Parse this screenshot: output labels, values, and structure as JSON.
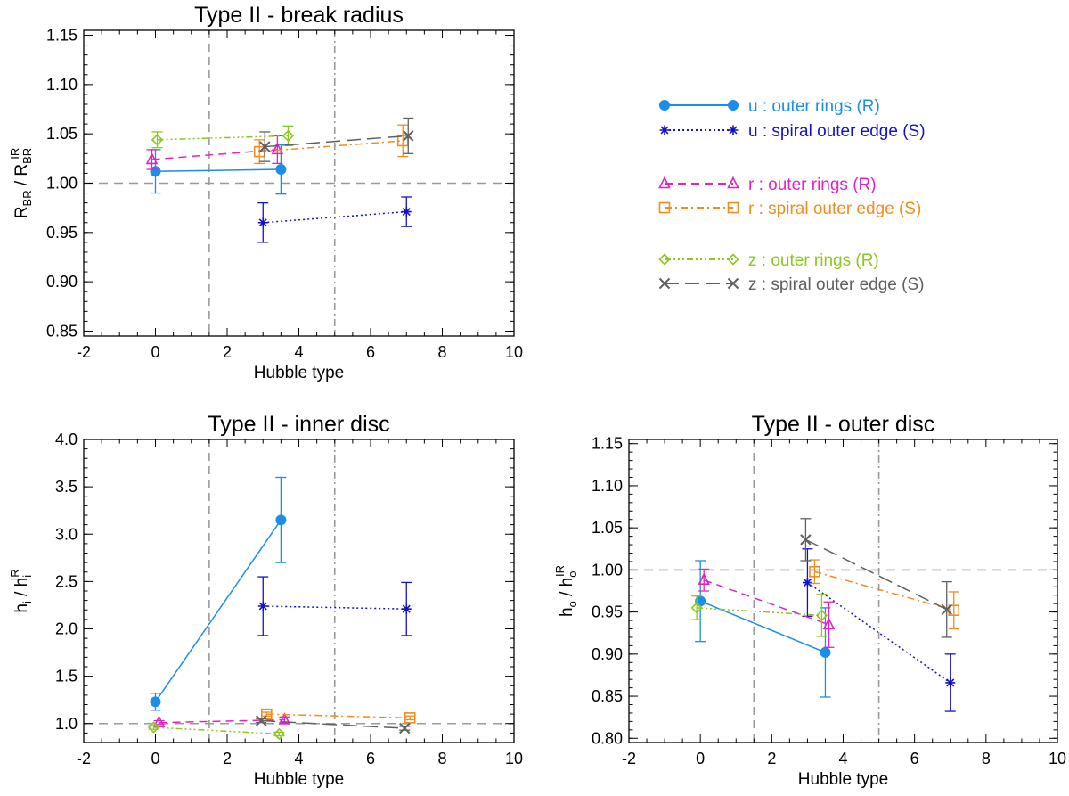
{
  "chart_data": [
    {
      "type": "line",
      "title": "Type II - break radius",
      "xlabel": "Hubble type",
      "ylabel": {
        "main": "R",
        "sub": "BR",
        "sep": " / R",
        "sub2": "BR",
        "sup2": "IR"
      },
      "xlim": [
        -2,
        10
      ],
      "ylim": [
        0.845,
        1.155
      ],
      "xticks": [
        -2,
        0,
        2,
        4,
        6,
        8,
        10
      ],
      "xtick_labels": [
        "-2",
        "0",
        "2",
        "4",
        "6",
        "8",
        "10"
      ],
      "yticks": [
        0.85,
        0.9,
        0.95,
        1.0,
        1.05,
        1.1,
        1.15
      ],
      "ytick_labels": [
        "0.85",
        "0.90",
        "0.95",
        "1.00",
        "1.05",
        "1.10",
        "1.15"
      ],
      "hline": 1.0,
      "vlines": [
        {
          "x": 1.5,
          "style": "dashed"
        },
        {
          "x": 5.0,
          "style": "dashdot"
        }
      ],
      "series": [
        {
          "key": "u_R",
          "x": [
            0.0,
            3.5
          ],
          "y": [
            1.012,
            1.014
          ],
          "err": [
            0.022,
            0.025
          ]
        },
        {
          "key": "u_S",
          "x": [
            3.0,
            7.0
          ],
          "y": [
            0.96,
            0.971
          ],
          "err": [
            0.02,
            0.015
          ]
        },
        {
          "key": "r_R",
          "x": [
            -0.1,
            3.4
          ],
          "y": [
            1.024,
            1.034
          ],
          "err": [
            0.01,
            0.014
          ]
        },
        {
          "key": "r_S",
          "x": [
            2.9,
            6.9
          ],
          "y": [
            1.032,
            1.043
          ],
          "err": [
            0.012,
            0.016
          ]
        },
        {
          "key": "z_R",
          "x": [
            0.05,
            3.7
          ],
          "y": [
            1.044,
            1.048
          ],
          "err": [
            0.008,
            0.01
          ]
        },
        {
          "key": "z_S",
          "x": [
            3.05,
            7.05
          ],
          "y": [
            1.037,
            1.048
          ],
          "err": [
            0.015,
            0.018
          ]
        }
      ]
    },
    {
      "type": "line",
      "title": "Type II - inner disc",
      "xlabel": "Hubble type",
      "ylabel": {
        "main": "h",
        "sub": "i",
        "sep": " / h",
        "sub2": "i",
        "sup2": "IR"
      },
      "xlim": [
        -2,
        10
      ],
      "ylim": [
        0.8,
        4.0
      ],
      "xticks": [
        -2,
        0,
        2,
        4,
        6,
        8,
        10
      ],
      "xtick_labels": [
        "-2",
        "0",
        "2",
        "4",
        "6",
        "8",
        "10"
      ],
      "yticks": [
        1.0,
        1.5,
        2.0,
        2.5,
        3.0,
        3.5,
        4.0
      ],
      "ytick_labels": [
        "1.0",
        "1.5",
        "2.0",
        "2.5",
        "3.0",
        "3.5",
        "4.0"
      ],
      "hline": 1.0,
      "vlines": [
        {
          "x": 1.5,
          "style": "dashed"
        },
        {
          "x": 5.0,
          "style": "dashdot"
        }
      ],
      "series": [
        {
          "key": "u_R",
          "x": [
            0.0,
            3.5
          ],
          "y": [
            1.23,
            3.15
          ],
          "err": [
            0.09,
            0.45
          ]
        },
        {
          "key": "u_S",
          "x": [
            3.0,
            7.0
          ],
          "y": [
            2.24,
            2.21
          ],
          "err": [
            0.31,
            0.28
          ]
        },
        {
          "key": "r_R",
          "x": [
            0.1,
            3.6
          ],
          "y": [
            1.01,
            1.04
          ],
          "err": [
            0.02,
            0.03
          ]
        },
        {
          "key": "r_S",
          "x": [
            3.1,
            7.1
          ],
          "y": [
            1.1,
            1.06
          ],
          "err": [
            0.02,
            0.02
          ]
        },
        {
          "key": "z_R",
          "x": [
            -0.05,
            3.45
          ],
          "y": [
            0.96,
            0.89
          ],
          "err": [
            0.02,
            0.02
          ]
        },
        {
          "key": "z_S",
          "x": [
            2.95,
            6.95
          ],
          "y": [
            1.03,
            0.95
          ],
          "err": [
            0.02,
            0.02
          ]
        }
      ]
    },
    {
      "type": "line",
      "title": "Type II - outer disc",
      "xlabel": "Hubble type",
      "ylabel": {
        "main": "h",
        "sub": "o",
        "sep": " / h",
        "sub2": "o",
        "sup2": "IR"
      },
      "xlim": [
        -2,
        10
      ],
      "ylim": [
        0.795,
        1.155
      ],
      "xticks": [
        -2,
        0,
        2,
        4,
        6,
        8,
        10
      ],
      "xtick_labels": [
        "-2",
        "0",
        "2",
        "4",
        "6",
        "8",
        "10"
      ],
      "yticks": [
        0.8,
        0.85,
        0.9,
        0.95,
        1.0,
        1.05,
        1.1,
        1.15
      ],
      "ytick_labels": [
        "0.80",
        "0.85",
        "0.90",
        "0.95",
        "1.00",
        "1.05",
        "1.10",
        "1.15"
      ],
      "hline": 1.0,
      "vlines": [
        {
          "x": 1.5,
          "style": "dashed"
        },
        {
          "x": 5.0,
          "style": "dashdot"
        }
      ],
      "series": [
        {
          "key": "u_R",
          "x": [
            0.0,
            3.5
          ],
          "y": [
            0.963,
            0.902
          ],
          "err": [
            0.048,
            0.053
          ]
        },
        {
          "key": "u_S",
          "x": [
            3.0,
            7.0
          ],
          "y": [
            0.985,
            0.866
          ],
          "err": [
            0.04,
            0.034
          ]
        },
        {
          "key": "r_R",
          "x": [
            0.1,
            3.6
          ],
          "y": [
            0.988,
            0.935
          ],
          "err": [
            0.013,
            0.027
          ]
        },
        {
          "key": "r_S",
          "x": [
            3.2,
            7.1
          ],
          "y": [
            0.998,
            0.952
          ],
          "err": [
            0.014,
            0.022
          ]
        },
        {
          "key": "z_R",
          "x": [
            -0.1,
            3.4
          ],
          "y": [
            0.955,
            0.946
          ],
          "err": [
            0.014,
            0.025
          ]
        },
        {
          "key": "z_S",
          "x": [
            2.95,
            6.9
          ],
          "y": [
            1.036,
            0.953
          ],
          "err": [
            0.025,
            0.033
          ]
        }
      ]
    }
  ],
  "legend": [
    {
      "key": "u_R",
      "label": "u : outer rings (R)",
      "color": "#1a8ee8",
      "marker": "filled-circle",
      "dash": "solid"
    },
    {
      "key": "u_S",
      "label": "u : spiral outer edge (S)",
      "color": "#1212c8",
      "marker": "asterisk",
      "dash": "dotted"
    },
    {
      "key": "r_R",
      "label": "r : outer rings (R)",
      "color": "#e621c4",
      "marker": "triangle",
      "dash": "dashed"
    },
    {
      "key": "r_S",
      "label": "r : spiral outer edge (S)",
      "color": "#f28c1e",
      "marker": "square",
      "dash": "dashdot"
    },
    {
      "key": "z_R",
      "label": "z : outer rings (R)",
      "color": "#8cc81e",
      "marker": "diamond",
      "dash": "dashdotdotdot"
    },
    {
      "key": "z_S",
      "label": "z : spiral outer edge (S)",
      "color": "#606060",
      "marker": "cross",
      "dash": "longdash"
    }
  ]
}
